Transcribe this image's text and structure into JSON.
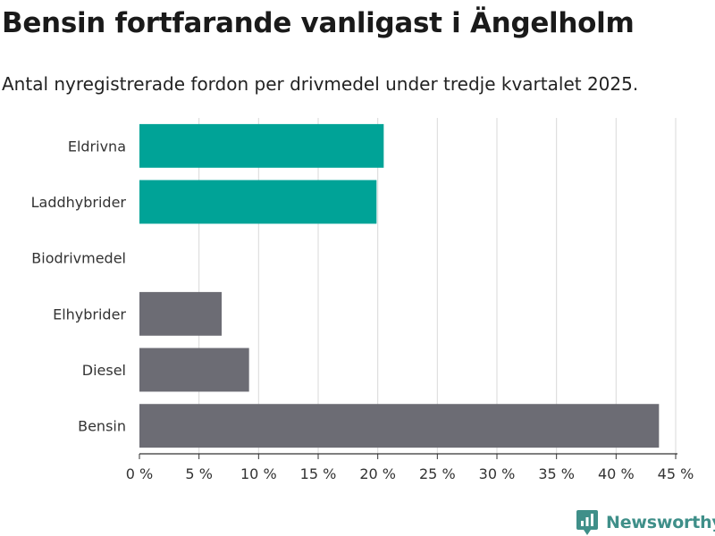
{
  "title": "Bensin fortfarande vanligast i Ängelholm",
  "subtitle": "Antal nyregistrerade fordon per drivmedel under tredje kvartalet 2025.",
  "brand": "Newsworthy",
  "colors": {
    "highlight": "#00a397",
    "default": "#6c6c74",
    "grid": "#d9d9d9",
    "brand": "#3f8f89"
  },
  "chart_data": {
    "type": "bar",
    "orientation": "horizontal",
    "categories": [
      "Eldrivna",
      "Laddhybrider",
      "Biodrivmedel",
      "Elhybrider",
      "Diesel",
      "Bensin"
    ],
    "values": [
      20.5,
      19.9,
      0,
      6.9,
      9.2,
      43.6
    ],
    "highlighted": [
      true,
      true,
      false,
      false,
      false,
      false
    ],
    "xlim": [
      0,
      45
    ],
    "xticks": [
      0,
      5,
      10,
      15,
      20,
      25,
      30,
      35,
      40,
      45
    ],
    "xtick_labels": [
      "0 %",
      "5 %",
      "10 %",
      "15 %",
      "20 %",
      "25 %",
      "30 %",
      "35 %",
      "40 %",
      "45 %"
    ],
    "xlabel": "",
    "ylabel": "",
    "grid": true
  }
}
